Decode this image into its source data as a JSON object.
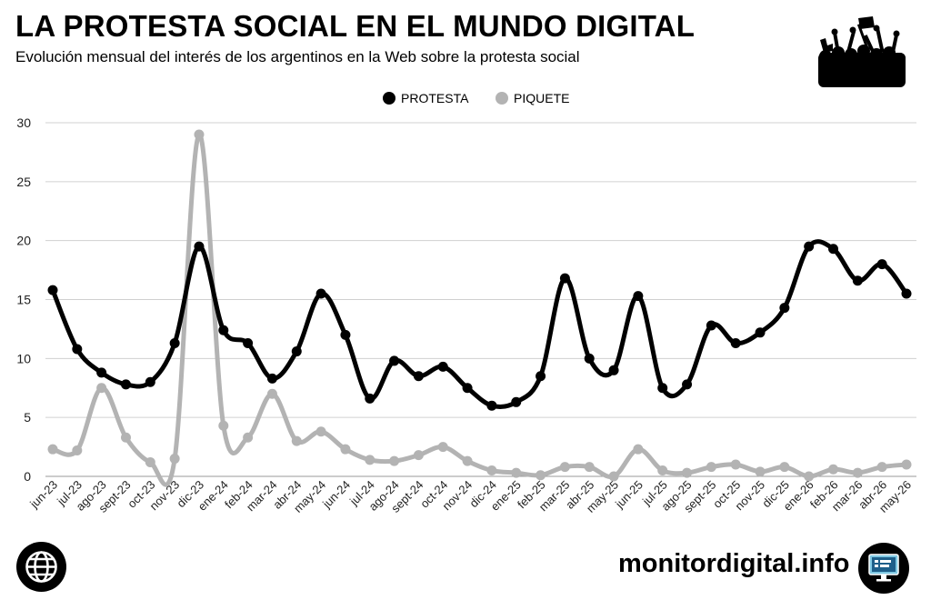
{
  "header": {
    "title": "LA PROTESTA SOCIAL EN EL MUNDO DIGITAL",
    "subtitle": "Evolución mensual del interés de los argentinos en la Web sobre la protesta social"
  },
  "footer": {
    "site": "monitordigital.info",
    "left_icon": "globe-icon",
    "right_icon": "monitor-icon"
  },
  "chart_data": {
    "type": "line",
    "categories": [
      "jun-23",
      "jul-23",
      "ago-23",
      "sept-23",
      "oct-23",
      "nov-23",
      "dic-23",
      "ene-24",
      "feb-24",
      "mar-24",
      "abr-24",
      "may-24",
      "jun-24",
      "jul-24",
      "ago-24",
      "sept-24",
      "oct-24",
      "nov-24",
      "dic-24",
      "ene-25",
      "feb-25",
      "mar-25",
      "abr-25",
      "may-25",
      "jun-25",
      "jul-25",
      "ago-25",
      "sept-25",
      "oct-25",
      "nov-25",
      "dic-25",
      "ene-26",
      "feb-26",
      "mar-26",
      "abr-26",
      "may-26"
    ],
    "series": [
      {
        "name": "PROTESTA",
        "color": "#000000",
        "values": [
          15.8,
          10.8,
          8.8,
          7.8,
          8.0,
          11.3,
          19.5,
          12.4,
          11.3,
          8.3,
          10.6,
          15.5,
          12.0,
          6.6,
          9.8,
          8.5,
          9.3,
          7.5,
          6.0,
          6.3,
          8.5,
          16.8,
          10.0,
          9.0,
          15.3,
          7.5,
          7.8,
          12.8,
          11.3,
          12.2,
          14.3,
          19.5,
          19.3,
          16.6,
          18.0,
          15.5
        ]
      },
      {
        "name": "PIQUETE",
        "color": "#b3b3b3",
        "values": [
          2.3,
          2.2,
          7.5,
          3.3,
          1.2,
          1.5,
          29.0,
          4.3,
          3.3,
          7.0,
          3.0,
          3.8,
          2.3,
          1.4,
          1.3,
          1.8,
          2.5,
          1.3,
          0.5,
          0.3,
          0.1,
          0.8,
          0.8,
          0.0,
          2.3,
          0.5,
          0.3,
          0.8,
          1.0,
          0.4,
          0.8,
          0.0,
          0.6,
          0.3,
          0.8,
          1.0
        ]
      }
    ],
    "yticks": [
      "0",
      "5",
      "10",
      "15",
      "20",
      "25",
      "30"
    ],
    "ylim": [
      0,
      30
    ],
    "grid": true,
    "legend": "top-center",
    "xlabel": "",
    "ylabel": ""
  }
}
